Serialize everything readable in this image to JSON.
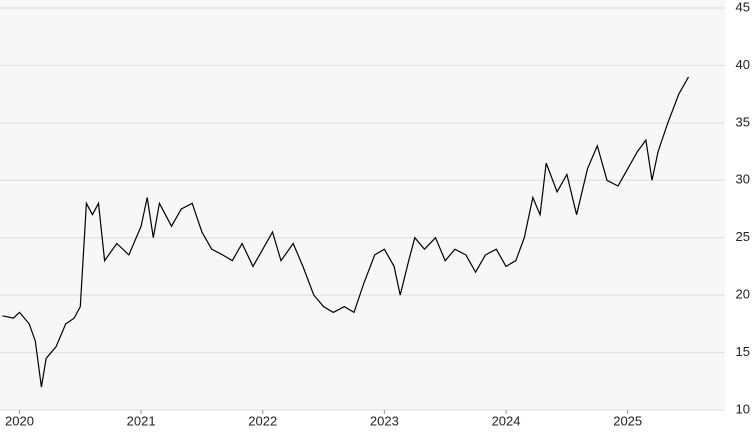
{
  "chart_data": {
    "type": "line",
    "x": [
      2019.86,
      2019.95,
      2020.0,
      2020.08,
      2020.13,
      2020.18,
      2020.22,
      2020.3,
      2020.38,
      2020.45,
      2020.5,
      2020.55,
      2020.6,
      2020.65,
      2020.7,
      2020.8,
      2020.9,
      2021.0,
      2021.05,
      2021.1,
      2021.15,
      2021.25,
      2021.33,
      2021.42,
      2021.5,
      2021.58,
      2021.67,
      2021.75,
      2021.83,
      2021.92,
      2022.0,
      2022.08,
      2022.15,
      2022.25,
      2022.33,
      2022.42,
      2022.5,
      2022.58,
      2022.67,
      2022.75,
      2022.83,
      2022.92,
      2023.0,
      2023.08,
      2023.13,
      2023.2,
      2023.25,
      2023.33,
      2023.42,
      2023.5,
      2023.58,
      2023.67,
      2023.75,
      2023.83,
      2023.92,
      2024.0,
      2024.08,
      2024.15,
      2024.22,
      2024.28,
      2024.33,
      2024.42,
      2024.5,
      2024.58,
      2024.67,
      2024.75,
      2024.83,
      2024.92,
      2025.0,
      2025.08,
      2025.15,
      2025.2,
      2025.25,
      2025.33,
      2025.42,
      2025.5
    ],
    "values": [
      18.2,
      18,
      18.5,
      17.5,
      16,
      12,
      14.5,
      15.5,
      17.5,
      18,
      19,
      28,
      27,
      28,
      23,
      24.5,
      23.5,
      26,
      28.5,
      25,
      28,
      26,
      27.5,
      28,
      25.5,
      24,
      23.5,
      23,
      24.5,
      22.5,
      24,
      25.5,
      23,
      24.5,
      22.5,
      20,
      19,
      18.5,
      19,
      18.5,
      21,
      23.5,
      24,
      22.5,
      20,
      23,
      25,
      24,
      25,
      23,
      24,
      23.5,
      22,
      23.5,
      24,
      22.5,
      23,
      25,
      28.5,
      27,
      31.5,
      29,
      30.5,
      27,
      31,
      33,
      30,
      29.5,
      31,
      32.5,
      33.5,
      30,
      32.5,
      35,
      37.5,
      39
    ],
    "color": "#000000",
    "xlim": [
      2019.84,
      2025.8
    ],
    "xticks": [
      2020,
      2021,
      2022,
      2023,
      2024,
      2025
    ],
    "ylim": [
      10,
      45
    ],
    "yticks": [
      10,
      15,
      20,
      25,
      30,
      35,
      40,
      45
    ],
    "grid": true
  }
}
